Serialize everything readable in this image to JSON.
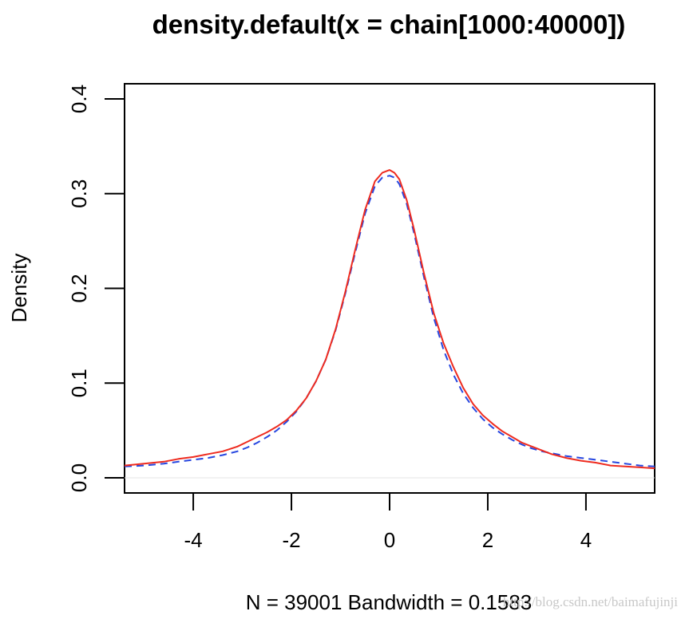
{
  "chart_data": {
    "type": "line",
    "title": "density.default(x = chain[1000:40000])",
    "xlabel": "N = 39001   Bandwidth = 0.1583",
    "ylabel": "Density",
    "xlim": [
      -5.4,
      5.4
    ],
    "ylim": [
      -0.016,
      0.416
    ],
    "x_ticks": [
      -4,
      -2,
      0,
      2,
      4
    ],
    "x_tick_labels": [
      "-4",
      "-2",
      "0",
      "2",
      "4"
    ],
    "y_ticks": [
      0.0,
      0.1,
      0.2,
      0.3,
      0.4
    ],
    "y_tick_labels": [
      "0.0",
      "0.1",
      "0.2",
      "0.3",
      "0.4"
    ],
    "grid": false,
    "baseline": 0,
    "series": [
      {
        "color": "#ee2b1f",
        "style": "solid",
        "x": [
          -5.4,
          -5.0,
          -4.6,
          -4.3,
          -4.0,
          -3.7,
          -3.4,
          -3.1,
          -2.9,
          -2.7,
          -2.5,
          -2.3,
          -2.1,
          -1.9,
          -1.7,
          -1.5,
          -1.3,
          -1.1,
          -0.9,
          -0.7,
          -0.5,
          -0.3,
          -0.15,
          0.0,
          0.1,
          0.2,
          0.35,
          0.5,
          0.7,
          0.9,
          1.1,
          1.3,
          1.5,
          1.7,
          1.9,
          2.1,
          2.3,
          2.5,
          2.7,
          2.9,
          3.1,
          3.3,
          3.6,
          3.9,
          4.2,
          4.5,
          4.8,
          5.1,
          5.4
        ],
        "y": [
          0.013,
          0.015,
          0.017,
          0.02,
          0.022,
          0.025,
          0.028,
          0.033,
          0.038,
          0.043,
          0.048,
          0.054,
          0.061,
          0.071,
          0.084,
          0.102,
          0.125,
          0.157,
          0.197,
          0.241,
          0.283,
          0.313,
          0.322,
          0.325,
          0.322,
          0.315,
          0.293,
          0.262,
          0.216,
          0.174,
          0.142,
          0.117,
          0.095,
          0.078,
          0.066,
          0.057,
          0.049,
          0.043,
          0.037,
          0.033,
          0.029,
          0.025,
          0.021,
          0.018,
          0.016,
          0.013,
          0.012,
          0.011,
          0.01
        ]
      },
      {
        "color": "#2747e0",
        "style": "dashed",
        "x": [
          -5.4,
          -5.0,
          -4.6,
          -4.3,
          -4.0,
          -3.7,
          -3.4,
          -3.1,
          -2.9,
          -2.7,
          -2.5,
          -2.3,
          -2.1,
          -1.9,
          -1.7,
          -1.5,
          -1.3,
          -1.1,
          -0.9,
          -0.7,
          -0.5,
          -0.3,
          -0.15,
          0.0,
          0.1,
          0.2,
          0.35,
          0.5,
          0.7,
          0.9,
          1.1,
          1.3,
          1.5,
          1.7,
          1.9,
          2.1,
          2.3,
          2.5,
          2.7,
          2.9,
          3.1,
          3.3,
          3.6,
          3.9,
          4.2,
          4.5,
          4.8,
          5.1,
          5.4
        ],
        "y": [
          0.012,
          0.013,
          0.015,
          0.017,
          0.019,
          0.021,
          0.024,
          0.028,
          0.032,
          0.037,
          0.043,
          0.05,
          0.059,
          0.07,
          0.084,
          0.102,
          0.125,
          0.156,
          0.195,
          0.238,
          0.279,
          0.308,
          0.317,
          0.319,
          0.317,
          0.31,
          0.289,
          0.258,
          0.212,
          0.169,
          0.135,
          0.109,
          0.089,
          0.074,
          0.062,
          0.053,
          0.046,
          0.04,
          0.035,
          0.031,
          0.028,
          0.026,
          0.023,
          0.021,
          0.019,
          0.017,
          0.015,
          0.013,
          0.012
        ]
      }
    ]
  },
  "watermark": "http://blog.csdn.net/baimafujinji"
}
